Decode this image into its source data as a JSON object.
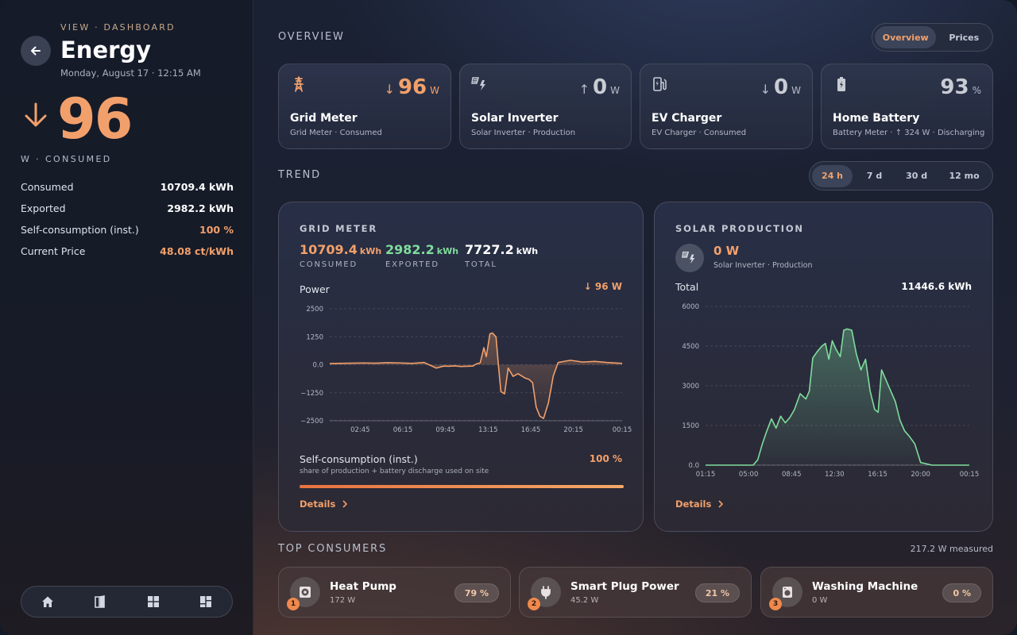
{
  "sidebar": {
    "breadcrumb": "VIEW · DASHBOARD",
    "title": "Energy",
    "date": "Monday, August 17 · 12:15 AM",
    "big_value": "96",
    "big_unit": "W · CONSUMED",
    "stats": [
      {
        "label": "Consumed",
        "value": "10709.4 kWh"
      },
      {
        "label": "Exported",
        "value": "2982.2 kWh"
      },
      {
        "label": "Self-consumption (inst.)",
        "value": "100 %"
      },
      {
        "label": "Current Price",
        "value": "48.08 ct/kWh"
      }
    ],
    "nav_icons": [
      "home-icon",
      "door-icon",
      "grid-icon",
      "dashboard-icon"
    ]
  },
  "overview": {
    "label": "OVERVIEW",
    "tabs": [
      "Overview",
      "Prices"
    ],
    "active_tab": "Overview"
  },
  "devices": [
    {
      "name": "Grid Meter",
      "sub": "Grid Meter · Consumed",
      "value": "96",
      "unit": "W",
      "trend": "↓",
      "icon": "transmission-tower-icon"
    },
    {
      "name": "Solar Inverter",
      "sub": "Solar Inverter · Production",
      "value": "0",
      "unit": "W",
      "trend": "↑",
      "icon": "solar-power-icon"
    },
    {
      "name": "EV Charger",
      "sub": "EV Charger · Consumed",
      "value": "0",
      "unit": "W",
      "trend": "↓",
      "icon": "ev-station-icon"
    },
    {
      "name": "Home Battery",
      "sub": "Battery Meter · ↑ 324 W · Discharging",
      "value": "93",
      "unit": "%",
      "trend": "",
      "icon": "battery-charging-icon"
    }
  ],
  "trend": {
    "label": "TREND",
    "ranges": [
      "24 h",
      "7 d",
      "30 d",
      "12 mo"
    ],
    "active_range": "24 h"
  },
  "grid_panel": {
    "title": "GRID METER",
    "kpis": [
      {
        "value": "10709.4",
        "unit": "kWh",
        "label": "CONSUMED",
        "color": "#f2a06b"
      },
      {
        "value": "2982.2",
        "unit": "kWh",
        "label": "EXPORTED",
        "color": "#7fdc9c"
      },
      {
        "value": "7727.2",
        "unit": "kWh",
        "label": "TOTAL",
        "color": "#ffffff"
      }
    ],
    "power_label": "Power",
    "power_value": "↓ 96 W",
    "self_label": "Self-consumption (inst.)",
    "self_value": "100 %",
    "self_fraction": 1.0,
    "self_note": "share of production + battery discharge used on site",
    "details": "Details"
  },
  "solar_panel": {
    "title": "SOLAR PRODUCTION",
    "current_value": "0 W",
    "current_sub": "Solar Inverter · Production",
    "total_label": "Total",
    "total_value": "11446.6 kWh",
    "details": "Details"
  },
  "chart_data": [
    {
      "type": "area",
      "ylim": [
        -2500,
        2500
      ],
      "yticks": [
        "2500",
        "1250",
        "0.0",
        "−1250",
        "−2500"
      ],
      "ytick_values": [
        2500,
        1250,
        0,
        -1250,
        -2500
      ],
      "xticks": [
        "02:45",
        "06:15",
        "09:45",
        "13:15",
        "16:45",
        "20:15",
        "00:15"
      ],
      "xtick_hours": [
        2.75,
        6.25,
        9.75,
        13.25,
        16.75,
        20.25,
        24.25
      ],
      "xlim": [
        0.25,
        24.25
      ],
      "color": "#f2a06b",
      "x": [
        0.25,
        1,
        2,
        3,
        4,
        5,
        6,
        7,
        8,
        9,
        9.6,
        10,
        10.5,
        11,
        11.5,
        12,
        12.3,
        12.6,
        12.9,
        13.1,
        13.4,
        13.6,
        13.9,
        14.1,
        14.3,
        14.6,
        14.9,
        15.3,
        15.7,
        16,
        16.3,
        16.6,
        16.9,
        17.2,
        17.5,
        17.8,
        18.2,
        18.6,
        19,
        19.5,
        20,
        21,
        22,
        23,
        24.25
      ],
      "y": [
        50,
        60,
        70,
        80,
        70,
        90,
        80,
        60,
        100,
        -150,
        -60,
        -70,
        -50,
        -80,
        -70,
        -60,
        40,
        80,
        760,
        360,
        1380,
        1420,
        1240,
        -40,
        -1200,
        -1300,
        -150,
        -520,
        -400,
        -500,
        -600,
        -650,
        -800,
        -1900,
        -2300,
        -2400,
        -1700,
        -500,
        100,
        150,
        200,
        120,
        150,
        100,
        60
      ]
    },
    {
      "type": "area",
      "ylim": [
        0,
        6000
      ],
      "yticks": [
        "6000",
        "4500",
        "3000",
        "1500",
        "0.0"
      ],
      "ytick_values": [
        6000,
        4500,
        3000,
        1500,
        0
      ],
      "xticks": [
        "01:15",
        "05:00",
        "08:45",
        "12:30",
        "16:15",
        "20:00",
        "00:15"
      ],
      "xtick_hours": [
        1.25,
        5,
        8.75,
        12.5,
        16.25,
        20,
        24.25
      ],
      "xlim": [
        1.25,
        24.25
      ],
      "color": "#7fdc9c",
      "x": [
        1.25,
        3,
        4.5,
        5.4,
        5.8,
        6.2,
        6.6,
        7,
        7.4,
        7.8,
        8.2,
        8.6,
        9,
        9.5,
        10,
        10.3,
        10.6,
        11,
        11.4,
        11.7,
        12,
        12.3,
        12.6,
        13,
        13.3,
        13.6,
        14,
        14.4,
        14.8,
        15.2,
        15.6,
        16,
        16.3,
        16.6,
        17,
        17.4,
        17.8,
        18.2,
        18.6,
        19,
        19.5,
        20,
        21,
        22,
        24.25
      ],
      "y": [
        0,
        0,
        0,
        0,
        200,
        800,
        1300,
        1750,
        1400,
        1850,
        1600,
        1800,
        2100,
        2700,
        2500,
        2800,
        4050,
        4300,
        4500,
        4600,
        4000,
        4700,
        4400,
        4100,
        5100,
        5150,
        5100,
        4200,
        3600,
        4000,
        2800,
        2100,
        2000,
        3600,
        3200,
        2800,
        2400,
        1700,
        1300,
        1100,
        800,
        100,
        0,
        0,
        0
      ]
    }
  ],
  "consumers": {
    "label": "TOP CONSUMERS",
    "measured": "217.2 W measured",
    "items": [
      {
        "rank": "1",
        "name": "Heat Pump",
        "power": "172 W",
        "share": "79 %",
        "icon": "heat-pump-icon"
      },
      {
        "rank": "2",
        "name": "Smart Plug Power",
        "power": "45.2 W",
        "share": "21 %",
        "icon": "power-plug-icon"
      },
      {
        "rank": "3",
        "name": "Washing Machine",
        "power": "0 W",
        "share": "0 %",
        "icon": "washing-machine-icon"
      }
    ]
  }
}
